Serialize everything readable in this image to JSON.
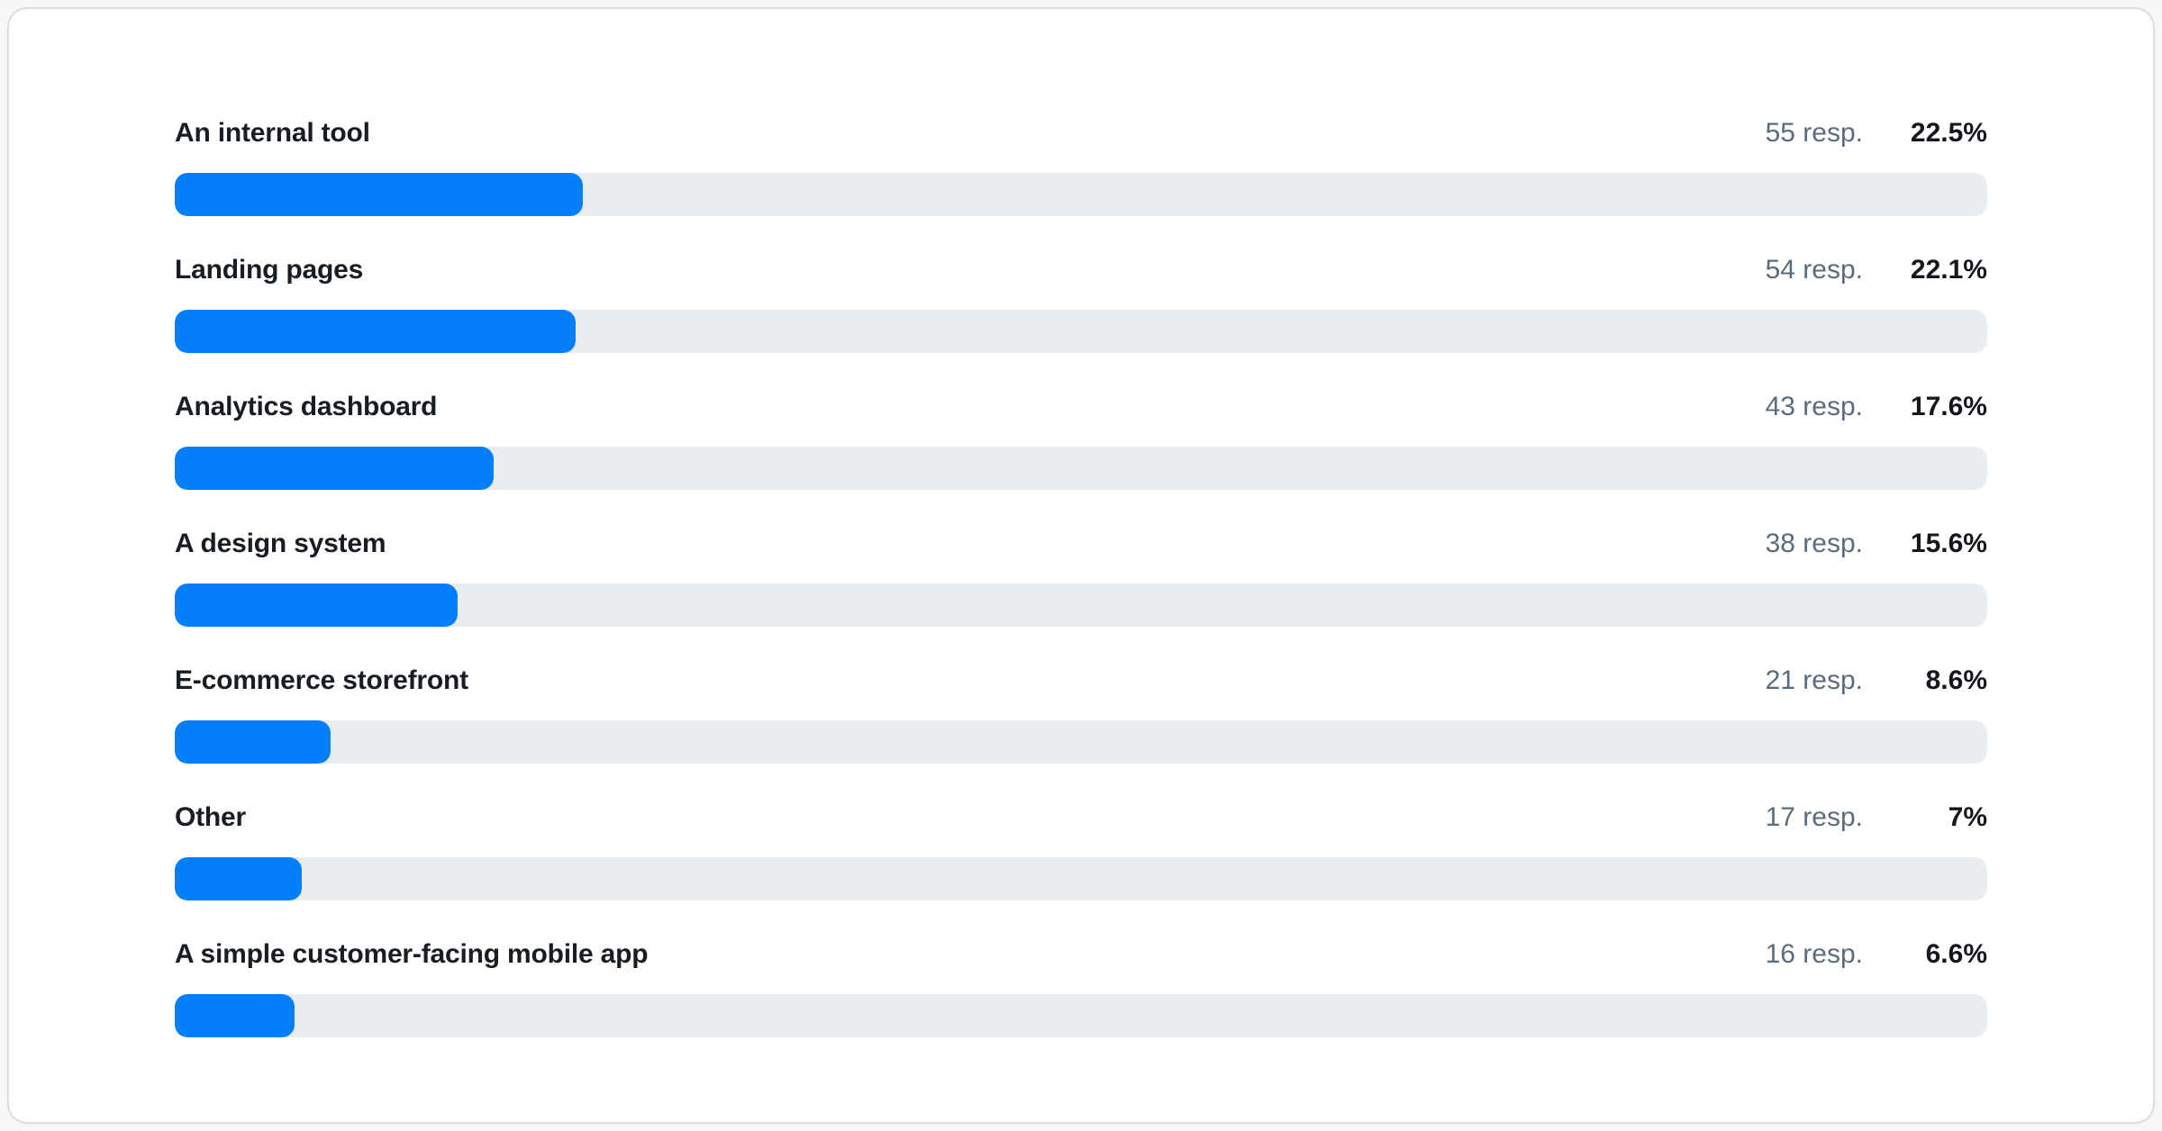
{
  "colors": {
    "bar_fill": "#037ffc",
    "bar_track": "#e9edf2",
    "label_text": "#181d23",
    "responses_text": "#5b6b7c",
    "percent_text": "#14181d",
    "card_border": "#d9dde2",
    "card_background": "#ffffff"
  },
  "chart_data": {
    "type": "bar",
    "orientation": "horizontal",
    "title": "",
    "xlabel": "",
    "ylabel": "",
    "xlim": [
      0,
      100
    ],
    "grid": false,
    "categories": [
      "An internal tool",
      "Landing pages",
      "Analytics dashboard",
      "A design system",
      "E-commerce storefront",
      "Other",
      "A simple customer-facing mobile app"
    ],
    "series": [
      {
        "name": "responses",
        "values": [
          55,
          54,
          43,
          38,
          21,
          17,
          16
        ]
      },
      {
        "name": "percent",
        "values": [
          22.5,
          22.1,
          17.6,
          15.6,
          8.6,
          7,
          6.6
        ]
      }
    ],
    "rows": [
      {
        "label": "An internal tool",
        "responses_text": "55 resp.",
        "percent": 22.5,
        "percent_text": "22.5%"
      },
      {
        "label": "Landing pages",
        "responses_text": "54 resp.",
        "percent": 22.1,
        "percent_text": "22.1%"
      },
      {
        "label": "Analytics dashboard",
        "responses_text": "43 resp.",
        "percent": 17.6,
        "percent_text": "17.6%"
      },
      {
        "label": "A design system",
        "responses_text": "38 resp.",
        "percent": 15.6,
        "percent_text": "15.6%"
      },
      {
        "label": "E-commerce storefront",
        "responses_text": "21 resp.",
        "percent": 8.6,
        "percent_text": "8.6%"
      },
      {
        "label": "Other",
        "responses_text": "17 resp.",
        "percent": 7,
        "percent_text": "7%"
      },
      {
        "label": "A simple customer-facing mobile app",
        "responses_text": "16 resp.",
        "percent": 6.6,
        "percent_text": "6.6%"
      }
    ]
  }
}
